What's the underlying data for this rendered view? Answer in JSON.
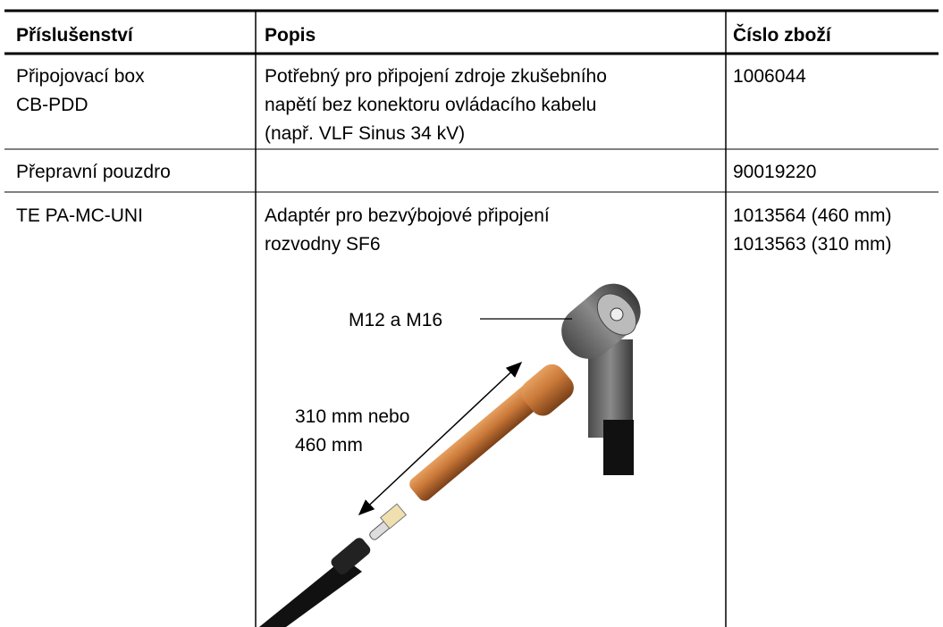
{
  "table": {
    "header": [
      "Příslušenství",
      "Popis",
      "Číslo zboží"
    ],
    "rows": [
      [
        [
          "Připojovací box",
          "CB-PDD"
        ],
        [
          "Potřebný pro připojení zdroje zkušebního",
          "napětí bez konektoru ovládacího kabelu",
          "(např. VLF Sinus 34 kV)"
        ],
        [
          "1006044"
        ]
      ],
      [
        [
          "Přepravní pouzdro"
        ],
        [],
        [
          "90019220"
        ]
      ],
      [
        [
          "TE PA-MC-UNI"
        ],
        [
          "Adaptér pro bezvýbojové připojení",
          "rozvodny SF6"
        ],
        [
          "1013564 (460 mm)",
          "1013563 (310 mm)"
        ]
      ]
    ]
  },
  "figure": {
    "labels": [
      "M12 a M16",
      "310 mm nebo",
      "460 mm"
    ]
  }
}
